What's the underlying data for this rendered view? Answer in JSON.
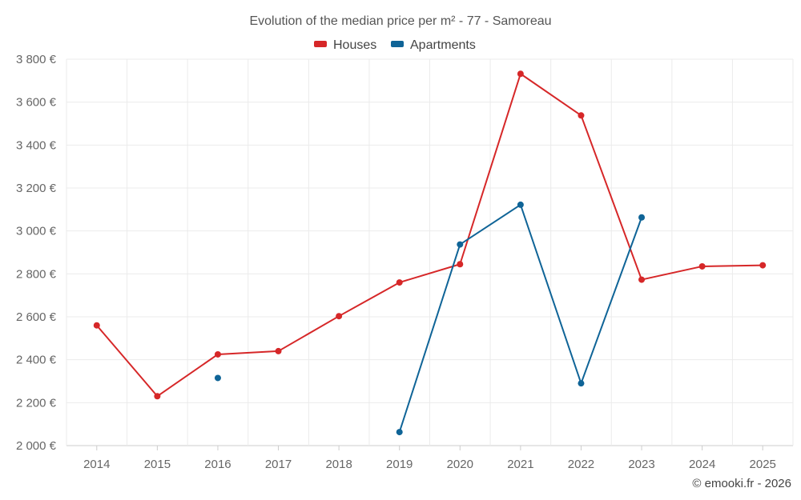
{
  "chart_data": {
    "type": "line",
    "title": "Evolution of the median price per m² - 77 - Samoreau",
    "xlabel": "",
    "ylabel": "",
    "ylim": [
      2000,
      3800
    ],
    "yticks": [
      2000,
      2200,
      2400,
      2600,
      2800,
      3000,
      3200,
      3400,
      3600,
      3800
    ],
    "ytick_labels": [
      "2 000 €",
      "2 200 €",
      "2 400 €",
      "2 600 €",
      "2 800 €",
      "3 000 €",
      "3 200 €",
      "3 400 €",
      "3 600 €",
      "3 800 €"
    ],
    "categories": [
      "2014",
      "2015",
      "2016",
      "2017",
      "2018",
      "2019",
      "2020",
      "2021",
      "2022",
      "2023",
      "2024",
      "2025"
    ],
    "grid": true,
    "legend_position": "top-center",
    "series": [
      {
        "name": "Houses",
        "color": "#d62728",
        "values": [
          2560,
          2230,
          2425,
          2440,
          2603,
          2760,
          2845,
          3732,
          3538,
          2773,
          2835,
          2840
        ]
      },
      {
        "name": "Apartments",
        "color": "#0f6497",
        "values": [
          null,
          null,
          2315,
          null,
          null,
          2063,
          2937,
          3122,
          2290,
          3063,
          null,
          null
        ]
      }
    ]
  },
  "credit": "© emooki.fr - 2026"
}
